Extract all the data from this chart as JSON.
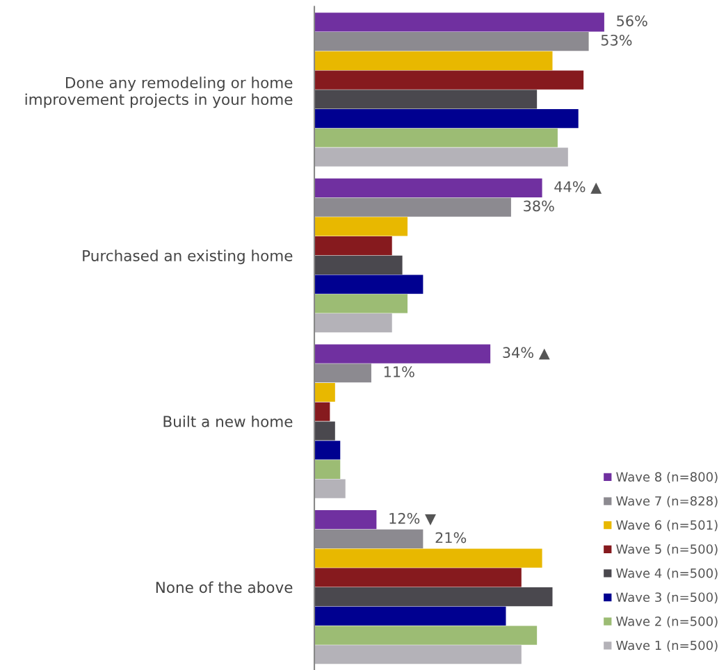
{
  "chart_data": {
    "type": "bar",
    "orientation": "horizontal",
    "categories": [
      "Done any remodeling or home improvement projects in your home",
      "Purchased an existing home",
      "Built a new home",
      "None of the above"
    ],
    "series": [
      {
        "name": "Wave 8 (n=800)",
        "color": "#7030a0",
        "values": [
          56,
          44,
          34,
          12
        ],
        "value_labels": [
          "56%",
          "44% ▲",
          "34% ▲",
          "12% ▼"
        ]
      },
      {
        "name": "Wave 7 (n=828)",
        "color": "#8c8a90",
        "values": [
          53,
          38,
          11,
          21
        ],
        "value_labels": [
          "53%",
          "38%",
          "11%",
          "21%"
        ]
      },
      {
        "name": "Wave 6 (n=501)",
        "color": "#e8b800",
        "values": [
          46,
          18,
          4,
          44
        ]
      },
      {
        "name": "Wave 5 (n=500)",
        "color": "#861a1e",
        "values": [
          52,
          15,
          3,
          40
        ]
      },
      {
        "name": "Wave 4 (n=500)",
        "color": "#4a484e",
        "values": [
          43,
          17,
          4,
          46
        ]
      },
      {
        "name": "Wave 3 (n=500)",
        "color": "#000090",
        "values": [
          51,
          21,
          5,
          37
        ]
      },
      {
        "name": "Wave 2 (n=500)",
        "color": "#9cbc74",
        "values": [
          47,
          18,
          5,
          43
        ]
      },
      {
        "name": "Wave 1 (n=500)",
        "color": "#b4b2b8",
        "values": [
          49,
          15,
          6,
          40
        ]
      }
    ],
    "legend": "bottom right",
    "grid": false
  }
}
